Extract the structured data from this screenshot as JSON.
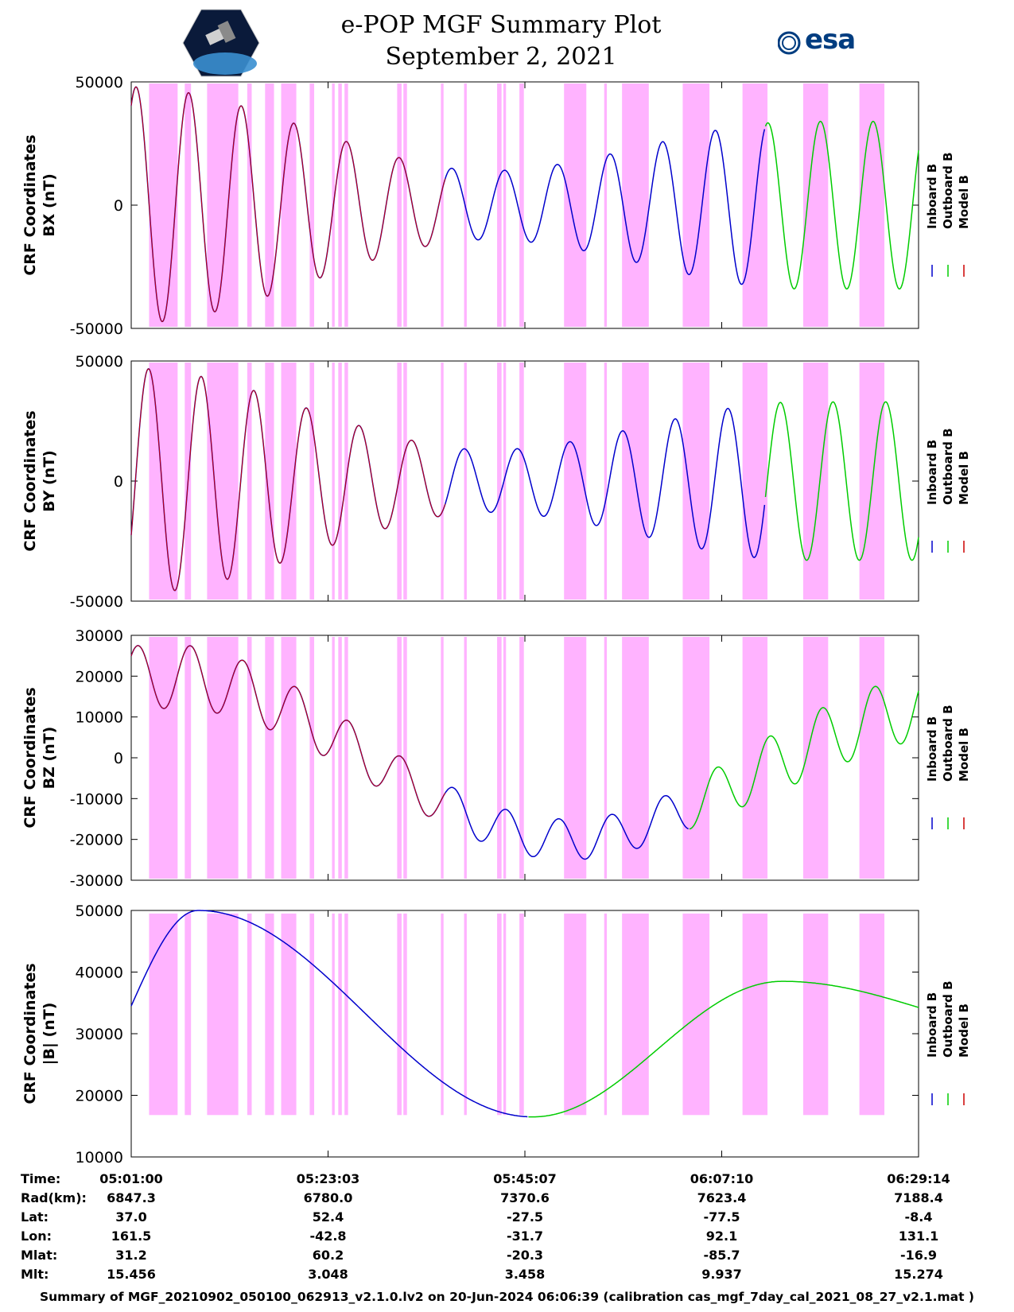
{
  "title_line1": "e-POP MGF Summary Plot",
  "title_line2": "September 2, 2021",
  "logo_right_text": "esa",
  "colors": {
    "inboard": "#0000cc",
    "outboard": "#00cc00",
    "model": "#cc0000",
    "shade": "#ffb3ff"
  },
  "legend": [
    "Inboard B",
    "Outboard B",
    "Model B"
  ],
  "chart_data": [
    {
      "type": "line",
      "ylabel": [
        "CRF Coordinates",
        "BX (nT)"
      ],
      "ylim": [
        -50000,
        50000
      ],
      "yticks": [
        50000,
        0,
        -50000
      ],
      "x_range_min": [
        0,
        88.23
      ],
      "series_wave": {
        "baseline": 0,
        "amp_start": 48000,
        "amp_mid": 14000,
        "amp_end": 34000,
        "period_min": 5.9,
        "phase": 1.0,
        "outboard_start_min": 71.0
      }
    },
    {
      "type": "line",
      "ylabel": [
        "CRF Coordinates",
        "BY (nT)"
      ],
      "ylim": [
        -50000,
        50000
      ],
      "yticks": [
        50000,
        0,
        -50000
      ],
      "x_range_min": [
        0,
        88.23
      ],
      "series_wave": {
        "baseline": 0,
        "amp_start": 47000,
        "amp_mid": 13000,
        "amp_end": 33000,
        "period_min": 5.9,
        "phase": -0.5,
        "outboard_start_min": 71.0
      }
    },
    {
      "type": "line",
      "ylabel": [
        "CRF Coordinates",
        "BZ (nT)"
      ],
      "ylim": [
        -30000,
        30000
      ],
      "yticks": [
        30000,
        20000,
        10000,
        0,
        -10000,
        -20000,
        -30000
      ],
      "x_range_min": [
        0,
        88.23
      ],
      "series_wave": {
        "outboard_start_min": 62.5
      }
    },
    {
      "type": "line",
      "ylabel": [
        "CRF Coordinates",
        "|B| (nT)"
      ],
      "ylim": [
        10000,
        50000
      ],
      "yticks": [
        50000,
        40000,
        30000,
        20000,
        10000
      ],
      "x_range_min": [
        0,
        88.23
      ],
      "series_wave": {
        "outboard_start_min": 44.5
      }
    }
  ],
  "shade_intervals_min": [
    [
      2.0,
      5.2
    ],
    [
      6.0,
      6.7
    ],
    [
      8.5,
      12.0
    ],
    [
      13.0,
      13.5
    ],
    [
      15.0,
      16.0
    ],
    [
      16.8,
      18.5
    ],
    [
      20.0,
      20.5
    ],
    [
      22.5,
      22.8
    ],
    [
      23.2,
      23.6
    ],
    [
      23.9,
      24.3
    ],
    [
      29.8,
      30.3
    ],
    [
      30.5,
      30.9
    ],
    [
      34.7,
      35.0
    ],
    [
      37.3,
      37.6
    ],
    [
      41.0,
      41.5
    ],
    [
      41.7,
      42.0
    ],
    [
      43.5,
      44.0
    ],
    [
      48.5,
      51.0
    ],
    [
      53.0,
      53.3
    ],
    [
      55.0,
      58.0
    ],
    [
      61.8,
      64.8
    ],
    [
      68.5,
      71.3
    ],
    [
      75.3,
      78.1
    ],
    [
      81.6,
      84.4
    ]
  ],
  "x_ticks": [
    "05:01:00",
    "05:23:03",
    "05:45:07",
    "06:07:10",
    "06:29:14"
  ],
  "info_rows": [
    {
      "label": "Time:",
      "values": [
        "05:01:00",
        "05:23:03",
        "05:45:07",
        "06:07:10",
        "06:29:14"
      ]
    },
    {
      "label": "Rad(km):",
      "values": [
        "6847.3",
        "6780.0",
        "7370.6",
        "7623.4",
        "7188.4"
      ]
    },
    {
      "label": "Lat:",
      "values": [
        "37.0",
        "52.4",
        "-27.5",
        "-77.5",
        "-8.4"
      ]
    },
    {
      "label": "Lon:",
      "values": [
        "161.5",
        "-42.8",
        "-31.7",
        "92.1",
        "131.1"
      ]
    },
    {
      "label": "Mlat:",
      "values": [
        "31.2",
        "60.2",
        "-20.3",
        "-85.7",
        "-16.9"
      ]
    },
    {
      "label": "Mlt:",
      "values": [
        "15.456",
        "3.048",
        "3.458",
        "9.937",
        "15.274"
      ]
    }
  ],
  "footer": "Summary of MGF_20210902_050100_062913_v2.1.0.lv2 on 20-Jun-2024 06:06:39 (calibration cas_mgf_7day_cal_2021_08_27_v2.1.mat )"
}
